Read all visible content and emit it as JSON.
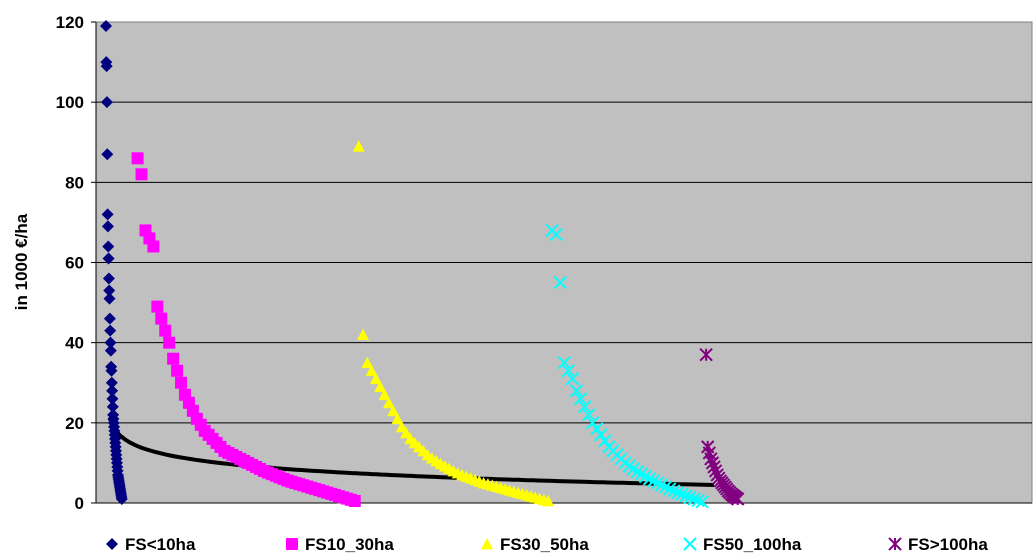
{
  "chart_data": {
    "type": "scatter",
    "title": "",
    "xlabel": "",
    "ylabel": "in 1000 €/ha",
    "ylim": [
      0,
      120
    ],
    "yticks": [
      "0",
      "20",
      "40",
      "60",
      "80",
      "100",
      "120"
    ],
    "grid": true,
    "legend_position": "bottom",
    "plot_background": "#c0c0c0",
    "series": [
      {
        "name": "FS<10ha",
        "marker": "diamond",
        "color": "#000080",
        "x_range": [
          0,
          4
        ],
        "values": [
          119,
          110,
          109,
          100,
          87,
          72,
          69,
          64,
          61,
          56,
          53,
          51,
          46,
          43,
          40,
          38,
          34,
          33,
          30,
          28,
          26,
          24,
          22,
          21,
          20,
          19,
          18,
          17,
          16,
          15,
          14,
          13,
          12,
          11,
          10,
          9,
          8,
          7,
          6.5,
          6,
          5.5,
          5,
          4.5,
          4,
          3.5,
          3,
          2.5,
          2,
          1.5,
          1
        ]
      },
      {
        "name": "FS10_30ha",
        "marker": "square",
        "color": "#ff00ff",
        "x_range": [
          8,
          63
        ],
        "values": [
          86,
          82,
          68,
          66,
          64,
          49,
          46,
          43,
          40,
          36,
          33,
          30,
          27,
          25,
          23,
          21,
          19.5,
          18,
          17,
          16,
          15,
          14,
          13,
          12.5,
          12,
          11.5,
          11,
          10.5,
          10,
          9.5,
          9,
          8.5,
          8,
          7.6,
          7.2,
          6.8,
          6.4,
          6,
          5.6,
          5.3,
          5,
          4.7,
          4.4,
          4.1,
          3.8,
          3.5,
          3.2,
          2.9,
          2.6,
          2.3,
          2,
          1.7,
          1.4,
          1.1,
          0.8,
          0.5
        ]
      },
      {
        "name": "FS30_50ha",
        "marker": "triangle",
        "color": "#ffff00",
        "x_range": [
          64,
          112
        ],
        "values": [
          89,
          42,
          35,
          33,
          31,
          29,
          27,
          25,
          23,
          21,
          19,
          17.5,
          16,
          15,
          14,
          13,
          12,
          11.2,
          10.5,
          9.8,
          9.2,
          8.6,
          8,
          7.5,
          7,
          6.6,
          6.2,
          5.8,
          5.4,
          5,
          4.7,
          4.4,
          4.1,
          3.8,
          3.5,
          3.2,
          2.9,
          2.6,
          2.3,
          2,
          1.7,
          1.4,
          1.1,
          0.8,
          0.5
        ]
      },
      {
        "name": "FS50_100ha",
        "marker": "x",
        "color": "#00ffff",
        "x_range": [
          113,
          151
        ],
        "values": [
          68,
          67,
          55,
          35,
          33,
          31,
          28,
          26,
          24,
          22,
          20,
          18.5,
          17,
          15.5,
          14,
          13,
          12,
          11,
          10,
          9.2,
          8.5,
          7.8,
          7.2,
          6.6,
          6,
          5.5,
          5,
          4.5,
          4,
          3.5,
          3,
          2.6,
          2.2,
          1.8,
          1.4,
          1,
          0.6,
          0.3
        ]
      },
      {
        "name": "FS>100ha",
        "marker": "asterisk",
        "color": "#800080",
        "x_range": [
          152,
          160
        ],
        "values": [
          37,
          14,
          12.5,
          11,
          10,
          9,
          8,
          7,
          6.2,
          5.5,
          5,
          4.5,
          4,
          3.5,
          3,
          2.6,
          2.2,
          1.9,
          1.6,
          1.3,
          1
        ]
      }
    ],
    "trendline": {
      "color": "#000000",
      "type": "logarithmic",
      "x_range": [
        1,
        154
      ],
      "start_value": 21,
      "end_value": 4.5
    }
  }
}
